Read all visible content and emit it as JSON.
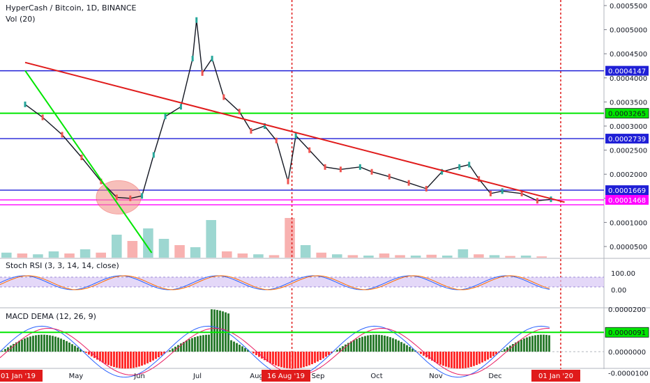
{
  "header": {
    "title": "HyperCash / Bitcoin, 1D, BINANCE",
    "volume_label": "Vol (20)"
  },
  "indicators": {
    "stoch_label": "Stoch RSI (3, 3, 14, 14, close)",
    "macd_label": "MACD DEMA (12, 26, 9)"
  },
  "colors": {
    "up": "#26a69a",
    "down": "#ef5350",
    "trend_red": "#e01b1b",
    "green_line": "#00e600",
    "blue_line": "#1f1fd6",
    "magenta": "#ff00ff",
    "stoch_band": "#d9c8f5"
  },
  "chart_data": [
    {
      "type": "candlestick",
      "title": "HyperCash / Bitcoin, 1D, BINANCE",
      "x_axis": {
        "type": "date",
        "ticks": [
          "01 Jan '19",
          "May",
          "Jun",
          "Jul",
          "Aug",
          "16 Aug '19",
          "Sep",
          "Oct",
          "Nov",
          "Dec",
          "01 Jan '20"
        ]
      },
      "y_axis": {
        "range": [
          3.7e-05,
          0.000556
        ],
        "ticks": [
          "0.0005500",
          "0.0005000",
          "0.0004500",
          "0.0004000",
          "0.0003500",
          "0.0003000",
          "0.0002500",
          "0.0002000",
          "0.0001500",
          "0.0001000",
          "0.0000500"
        ]
      },
      "price_points": [
        {
          "date": "2019-04-01",
          "value": 0.000345
        },
        {
          "date": "2019-04-10",
          "value": 0.000318
        },
        {
          "date": "2019-04-20",
          "value": 0.000282
        },
        {
          "date": "2019-04-30",
          "value": 0.000235
        },
        {
          "date": "2019-05-10",
          "value": 0.000185
        },
        {
          "date": "2019-05-18",
          "value": 0.000152
        },
        {
          "date": "2019-05-25",
          "value": 0.00015
        },
        {
          "date": "2019-05-31",
          "value": 0.000155
        },
        {
          "date": "2019-06-06",
          "value": 0.00024
        },
        {
          "date": "2019-06-12",
          "value": 0.00032
        },
        {
          "date": "2019-06-20",
          "value": 0.00034
        },
        {
          "date": "2019-06-26",
          "value": 0.00044
        },
        {
          "date": "2019-06-28",
          "value": 0.00052
        },
        {
          "date": "2019-07-01",
          "value": 0.00041
        },
        {
          "date": "2019-07-06",
          "value": 0.00044
        },
        {
          "date": "2019-07-12",
          "value": 0.00036
        },
        {
          "date": "2019-07-20",
          "value": 0.00033
        },
        {
          "date": "2019-07-26",
          "value": 0.00029
        },
        {
          "date": "2019-08-02",
          "value": 0.0003
        },
        {
          "date": "2019-08-08",
          "value": 0.00027
        },
        {
          "date": "2019-08-14",
          "value": 0.000185
        },
        {
          "date": "2019-08-18",
          "value": 0.00028
        },
        {
          "date": "2019-08-25",
          "value": 0.00025
        },
        {
          "date": "2019-09-02",
          "value": 0.000215
        },
        {
          "date": "2019-09-10",
          "value": 0.00021
        },
        {
          "date": "2019-09-20",
          "value": 0.000215
        },
        {
          "date": "2019-09-26",
          "value": 0.000205
        },
        {
          "date": "2019-10-05",
          "value": 0.000195
        },
        {
          "date": "2019-10-15",
          "value": 0.000182
        },
        {
          "date": "2019-10-24",
          "value": 0.00017
        },
        {
          "date": "2019-11-01",
          "value": 0.000205
        },
        {
          "date": "2019-11-10",
          "value": 0.000215
        },
        {
          "date": "2019-11-15",
          "value": 0.00022
        },
        {
          "date": "2019-11-20",
          "value": 0.00019
        },
        {
          "date": "2019-11-26",
          "value": 0.00016
        },
        {
          "date": "2019-12-02",
          "value": 0.000165
        },
        {
          "date": "2019-12-12",
          "value": 0.00016
        },
        {
          "date": "2019-12-20",
          "value": 0.000145
        },
        {
          "date": "2019-12-27",
          "value": 0.000148
        }
      ],
      "horizontal_levels": [
        {
          "value": 0.0004147,
          "label": "0.0004147",
          "color": "blue"
        },
        {
          "value": 0.0003265,
          "label": "0.0003265",
          "color": "green"
        },
        {
          "value": 0.0002739,
          "label": "0.0002739",
          "color": "blue"
        },
        {
          "value": 0.0001669,
          "label": "0.0001669",
          "color": "blue"
        },
        {
          "value": 0.0001468,
          "label": "0.0001468",
          "color": "magenta"
        }
      ],
      "trendlines": [
        {
          "color": "red",
          "from": {
            "date": "2019-04-01",
            "value": 0.000432
          },
          "to": {
            "date": "2020-01-03",
            "value": 0.000142
          }
        },
        {
          "color": "green",
          "from": {
            "date": "2019-04-01",
            "value": 0.000415
          },
          "to": {
            "date": "2019-06-05",
            "value": 3.7e-05
          }
        }
      ],
      "vertical_markers": [
        "2019-08-16",
        "2020-01-01"
      ]
    },
    {
      "type": "bar",
      "name": "Vol (20)",
      "note_series": "volume bars, relative heights 0-1",
      "volumes_relative": [
        0.12,
        0.1,
        0.08,
        0.15,
        0.1,
        0.2,
        0.12,
        0.55,
        0.4,
        0.7,
        0.45,
        0.3,
        0.25,
        0.9,
        0.15,
        0.1,
        0.08,
        0.06,
        0.95,
        0.3,
        0.12,
        0.08,
        0.06,
        0.05,
        0.1,
        0.06,
        0.05,
        0.07,
        0.05,
        0.2,
        0.08,
        0.06,
        0.04,
        0.05,
        0.03
      ]
    },
    {
      "type": "line",
      "name": "Stoch RSI (3, 3, 14, 14, close)",
      "y_ticks": [
        "100.00",
        "0.00"
      ]
    },
    {
      "type": "bar",
      "name": "MACD DEMA (12, 26, 9)",
      "y_ticks": [
        "0.0000200",
        "0.0000091",
        "0.0000000",
        "-0.0000100"
      ]
    }
  ]
}
